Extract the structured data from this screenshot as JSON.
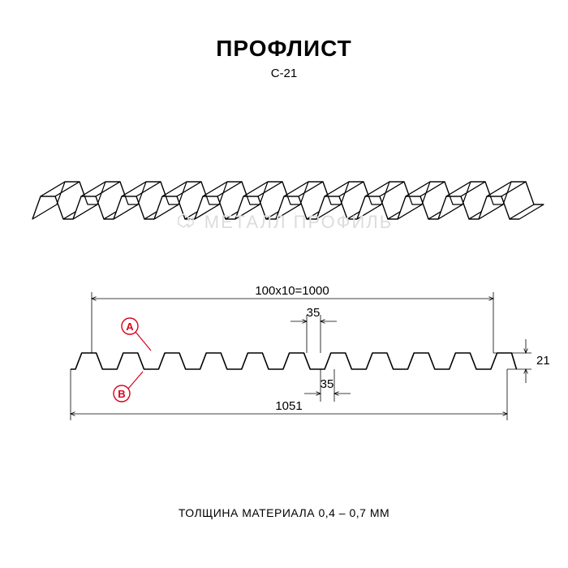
{
  "title": "ПРОФЛИСТ",
  "subtitle": "С-21",
  "watermark": "МЕТАЛЛ ПРОФИЛЬ",
  "footer": "ТОЛЩИНА МАТЕРИАЛА 0,4 – 0,7 ММ",
  "diagram": {
    "type": "technical-section",
    "profile": {
      "model": "C-21",
      "pitch": 100,
      "repeats": 10,
      "useful_width": 1000,
      "total_width": 1051,
      "height": 21,
      "top_flat": 35,
      "bottom_flat": 35
    },
    "dimensions": {
      "top_span": "100х10=1000",
      "bottom_span": "1051",
      "height": "21",
      "top_flat": "35",
      "bottom_flat": "35"
    },
    "callouts": {
      "A": {
        "label": "A",
        "color": "#d9001b"
      },
      "B": {
        "label": "B",
        "color": "#d9001b"
      }
    },
    "colors": {
      "stroke": "#000000",
      "dim_stroke": "#000000",
      "callout": "#d9001b",
      "watermark": "#dcdcdc",
      "background": "#ffffff"
    },
    "line_widths": {
      "profile": 1.6,
      "dimension": 0.8,
      "callout": 1.2
    },
    "fonts": {
      "title_size": 28,
      "title_weight": 900,
      "subtitle_size": 15,
      "dim_size": 15,
      "footer_size": 14
    },
    "iso_view": {
      "ribs": 12,
      "rib_spacing": 50,
      "depth_dx": 30,
      "depth_dy": -18
    }
  }
}
